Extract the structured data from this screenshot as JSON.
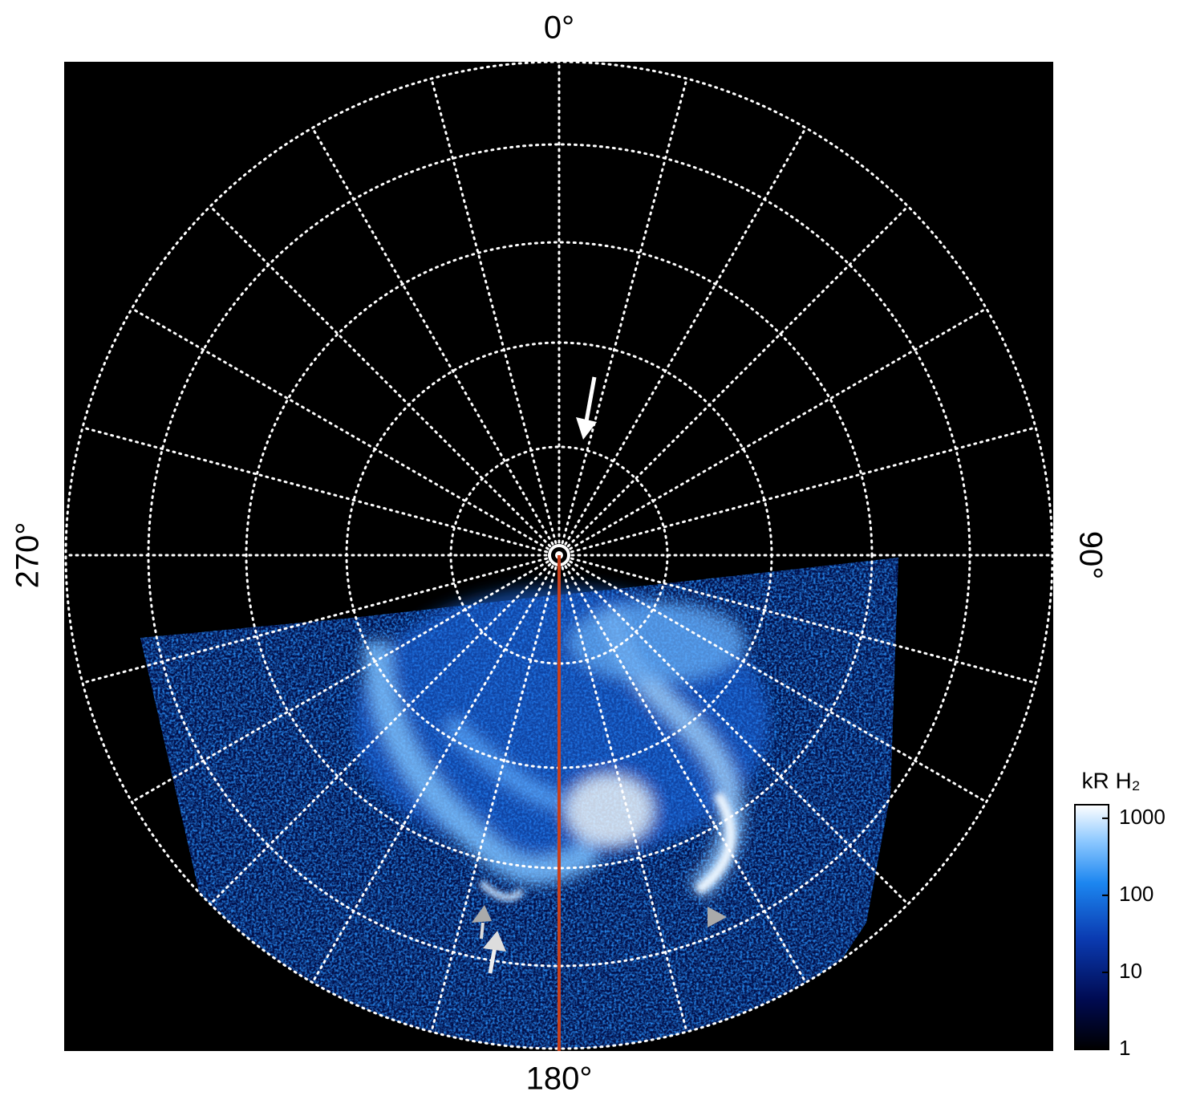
{
  "chart_data": {
    "type": "polar-map",
    "theta_ticks": [
      {
        "value": 0,
        "label": "0°"
      },
      {
        "value": 90,
        "label": "90°"
      },
      {
        "value": 180,
        "label": "180°"
      },
      {
        "value": 270,
        "label": "270°"
      }
    ],
    "colorbar": {
      "title": "kR H₂",
      "log": true,
      "lim": [
        1,
        1500
      ],
      "ticks": [
        1,
        10,
        100,
        1000
      ]
    }
  }
}
